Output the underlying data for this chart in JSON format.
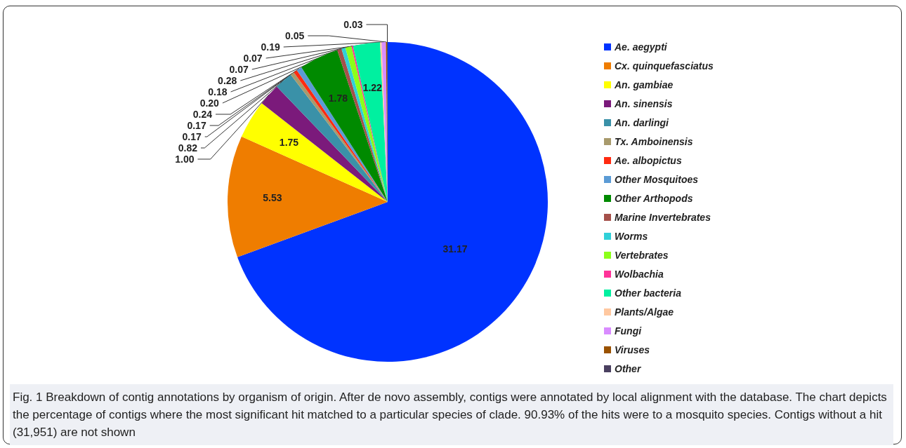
{
  "chart_data": {
    "type": "pie",
    "categories": [
      "Ae. aegypti",
      "Cx. quinquefasciatus",
      "An. gambiae",
      "An. sinensis",
      "An. darlingi",
      "Tx. Amboinensis",
      "Ae. albopictus",
      "Other Mosquitoes",
      "Other Arthopods",
      "Marine Invertebrates",
      "Worms",
      "Vertebrates",
      "Wolbachia",
      "Other bacteria",
      "Plants/Algae",
      "Fungi",
      "Viruses",
      "Other"
    ],
    "values": [
      31.17,
      5.53,
      1.75,
      1.0,
      0.82,
      0.17,
      0.17,
      0.24,
      1.78,
      0.2,
      0.18,
      0.28,
      0.07,
      1.22,
      0.07,
      0.19,
      0.05,
      0.03
    ],
    "colors": [
      "#0033ff",
      "#ef7d00",
      "#ffff00",
      "#7b1a7b",
      "#3a91a8",
      "#a89a6c",
      "#ff2a10",
      "#5b9bd5",
      "#008a00",
      "#a5504a",
      "#30d0d8",
      "#8cff1a",
      "#ff3399",
      "#00f0a0",
      "#ffc8a0",
      "#d98cff",
      "#9a5200",
      "#4a4060"
    ],
    "value_labels": [
      "31.17",
      "5.53",
      "1.75",
      "1.00",
      "0.82",
      "0.17",
      "0.17",
      "0.24",
      "1.78",
      "0.20",
      "0.18",
      "0.28",
      "0.07",
      "1.22",
      "0.07",
      "0.19",
      "0.05",
      "0.03"
    ],
    "legend": "right",
    "annotations": [
      "Fig. 1 Breakdown of contig annotations by organism of origin. After de novo assembly, contigs were annotated by local alignment with the database. The chart depicts the percentage of contigs where the most significant hit matched to a particular species of clade. 90.93% of the hits were to a mosquito species. Contigs without a hit (31,951) are not shown"
    ]
  }
}
